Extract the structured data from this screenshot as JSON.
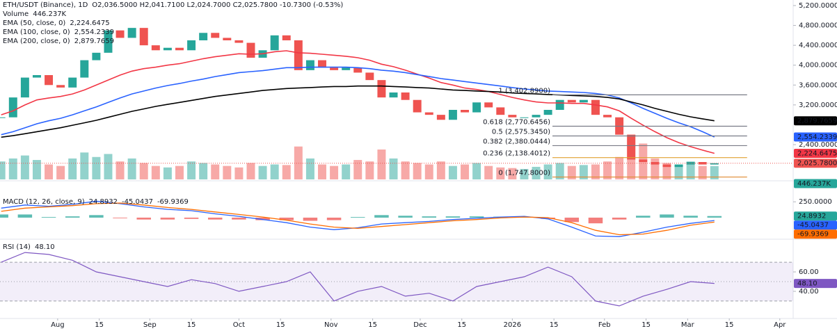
{
  "chart_data": [
    {
      "type": "candlestick",
      "symbol": "ETH/USDT (Binance), 1D",
      "ohlc_text": "O2,036.5000 H2,041.7100 L2,024.7000 C2,025.7800 -10.7300 (-0.53%)",
      "x": [
        -19,
        -15,
        -11,
        -7,
        -3,
        1,
        5,
        9,
        13,
        17,
        21,
        25,
        29,
        33,
        37,
        41,
        45,
        49,
        53,
        57,
        61,
        65,
        69,
        73,
        77,
        81,
        85,
        89,
        93,
        97,
        101,
        105,
        109,
        113,
        117,
        121,
        125,
        129,
        133,
        137,
        141,
        145,
        149,
        153,
        157,
        161,
        165,
        169,
        173,
        177,
        181,
        185,
        189,
        193,
        197,
        201,
        205,
        209,
        213,
        217,
        221
      ],
      "close": [
        2950,
        3350,
        3750,
        3800,
        3600,
        3550,
        3750,
        4100,
        4250,
        4700,
        4550,
        4750,
        4400,
        4300,
        4350,
        4300,
        4500,
        4650,
        4550,
        4500,
        4450,
        4150,
        4300,
        4600,
        4500,
        3900,
        4100,
        3950,
        3900,
        3950,
        3850,
        3700,
        3350,
        3450,
        3300,
        3050,
        3000,
        2900,
        3100,
        3050,
        3250,
        3150,
        3000,
        2950,
        2950,
        3000,
        3100,
        3300,
        3250,
        3300,
        3000,
        2950,
        2600,
        2100,
        2050,
        2000,
        1950,
        2000,
        2050,
        2000,
        2025.78
      ],
      "close_last_label": "2,025.7800",
      "up_color": "#26a69a",
      "down_color": "#ef5350",
      "volume": {
        "name": "Volume",
        "values": [
          600,
          700,
          800,
          650,
          500,
          450,
          700,
          900,
          750,
          850,
          600,
          700,
          550,
          450,
          400,
          450,
          600,
          550,
          500,
          450,
          400,
          550,
          450,
          500,
          480,
          1100,
          700,
          500,
          450,
          500,
          650,
          600,
          1000,
          700,
          600,
          550,
          500,
          600,
          450,
          500,
          550,
          450,
          400,
          380,
          350,
          420,
          500,
          550,
          450,
          480,
          500,
          600,
          750,
          1500,
          1200,
          700,
          550,
          500,
          600,
          450,
          446.237
        ],
        "last_label": "446.237K",
        "ylim": [
          0,
          6000
        ]
      },
      "series": [
        {
          "name": "EMA (50, close, 0)",
          "color": "#f23645",
          "last_label": "2,224.6475",
          "values": [
            3000,
            3080,
            3200,
            3300,
            3340,
            3370,
            3420,
            3500,
            3600,
            3700,
            3800,
            3880,
            3930,
            3960,
            4000,
            4030,
            4080,
            4130,
            4170,
            4200,
            4230,
            4220,
            4230,
            4270,
            4290,
            4250,
            4240,
            4220,
            4200,
            4180,
            4150,
            4100,
            4020,
            3970,
            3900,
            3820,
            3740,
            3650,
            3600,
            3540,
            3510,
            3470,
            3410,
            3350,
            3300,
            3260,
            3240,
            3240,
            3230,
            3230,
            3200,
            3160,
            3080,
            2930,
            2790,
            2660,
            2540,
            2440,
            2360,
            2290,
            2224.6475
          ]
        },
        {
          "name": "EMA (100, close, 0)",
          "color": "#2962ff",
          "last_label": "2,554.2339",
          "values": [
            2600,
            2660,
            2740,
            2820,
            2880,
            2930,
            3000,
            3080,
            3160,
            3250,
            3340,
            3420,
            3480,
            3540,
            3590,
            3630,
            3680,
            3720,
            3770,
            3810,
            3850,
            3870,
            3890,
            3920,
            3950,
            3950,
            3960,
            3960,
            3960,
            3960,
            3950,
            3930,
            3900,
            3880,
            3850,
            3810,
            3770,
            3730,
            3700,
            3670,
            3640,
            3610,
            3580,
            3550,
            3520,
            3500,
            3480,
            3470,
            3460,
            3450,
            3430,
            3400,
            3340,
            3240,
            3130,
            3030,
            2930,
            2840,
            2760,
            2660,
            2554.2339
          ]
        },
        {
          "name": "EMA (200, close, 0)",
          "color": "#000000",
          "last_label": "2,879.7659",
          "values": [
            2550,
            2580,
            2620,
            2660,
            2700,
            2740,
            2790,
            2840,
            2890,
            2950,
            3010,
            3070,
            3120,
            3170,
            3210,
            3250,
            3290,
            3330,
            3370,
            3400,
            3430,
            3460,
            3490,
            3510,
            3530,
            3540,
            3550,
            3560,
            3570,
            3570,
            3580,
            3580,
            3580,
            3570,
            3560,
            3550,
            3540,
            3520,
            3500,
            3490,
            3480,
            3470,
            3460,
            3440,
            3430,
            3420,
            3410,
            3400,
            3390,
            3380,
            3370,
            3350,
            3320,
            3260,
            3200,
            3130,
            3070,
            3010,
            2960,
            2920,
            2879.7659
          ]
        }
      ],
      "fib_x": [
        166.5,
        232
      ],
      "fib": [
        {
          "value": 3402.89,
          "label": "1 (3,402.8900)",
          "color": "#787b86"
        },
        {
          "value": 2770.6456,
          "label": "0.618 (2,770.6456)",
          "color": "#787b86"
        },
        {
          "value": 2575.345,
          "label": "0.5 (2,575.3450)",
          "color": "#787b86"
        },
        {
          "value": 2380.0444,
          "label": "0.382 (2,380.0444)",
          "color": "#787b86"
        },
        {
          "value": 2138.4012,
          "label": "0.236 (2,138.4012)",
          "color": "#e0a030"
        },
        {
          "value": 1747.8,
          "label": "0 (1,747.8000)",
          "color": "#e08a30"
        }
      ],
      "ylim": [
        1700,
        5312
      ],
      "yticks": [
        {
          "value": 5200,
          "label": "5,200.0000"
        },
        {
          "value": 4800,
          "label": "4,800.0000"
        },
        {
          "value": 4400,
          "label": "4,400.0000"
        },
        {
          "value": 4000,
          "label": "4,000.0000"
        },
        {
          "value": 3600,
          "label": "3,600.0000"
        },
        {
          "value": 3200,
          "label": "3,200.0000"
        },
        {
          "value": 2400,
          "label": "2,400.0000"
        }
      ],
      "xlim": [
        -19.4,
        247.5
      ],
      "xticks": [
        {
          "value": 0,
          "label": "Aug"
        },
        {
          "value": 14,
          "label": "15"
        },
        {
          "value": 31,
          "label": "Sep"
        },
        {
          "value": 45,
          "label": "15"
        },
        {
          "value": 61,
          "label": "Oct"
        },
        {
          "value": 75,
          "label": "15"
        },
        {
          "value": 92,
          "label": "Nov"
        },
        {
          "value": 106,
          "label": "15"
        },
        {
          "value": 122,
          "label": "Dec"
        },
        {
          "value": 136,
          "label": "15"
        },
        {
          "value": 153,
          "label": "2026"
        },
        {
          "value": 167,
          "label": "15"
        },
        {
          "value": 184,
          "label": "Feb"
        },
        {
          "value": 198,
          "label": "15"
        },
        {
          "value": 212,
          "label": "Mar"
        },
        {
          "value": 226,
          "label": "15"
        },
        {
          "value": 243,
          "label": "Apr"
        }
      ]
    },
    {
      "type": "macd",
      "title": "MACD (12, 26, close, 9)",
      "x": [
        -19,
        -11,
        -3,
        5,
        13,
        21,
        29,
        37,
        45,
        53,
        61,
        69,
        77,
        85,
        93,
        101,
        109,
        117,
        125,
        133,
        141,
        149,
        157,
        165,
        173,
        181,
        189,
        197,
        205,
        213,
        221
      ],
      "histogram": {
        "colors": [
          "#26a69a",
          "#ef5350"
        ],
        "values": [
          50,
          50,
          10,
          20,
          40,
          -10,
          -30,
          -30,
          -20,
          -30,
          -30,
          -40,
          -40,
          -50,
          -40,
          10,
          40,
          30,
          20,
          20,
          20,
          15,
          10,
          -20,
          -70,
          -90,
          -30,
          30,
          50,
          30,
          24.8932
        ]
      },
      "macd": {
        "color": "#2962ff",
        "values": [
          150,
          200,
          180,
          210,
          260,
          220,
          170,
          130,
          110,
          60,
          20,
          -30,
          -80,
          -150,
          -190,
          -160,
          -100,
          -80,
          -60,
          -30,
          -10,
          10,
          20,
          -20,
          -150,
          -290,
          -300,
          -230,
          -150,
          -90,
          -45.0437
        ]
      },
      "signal": {
        "color": "#ff6d00",
        "values": [
          100,
          150,
          170,
          190,
          220,
          230,
          200,
          160,
          130,
          90,
          50,
          10,
          -40,
          -100,
          -150,
          -170,
          -140,
          -110,
          -80,
          -50,
          -30,
          -5,
          10,
          0,
          -80,
          -200,
          -270,
          -260,
          -200,
          -120,
          -69.9369
        ]
      },
      "ylim": [
        -330,
        560
      ],
      "yticks": [
        {
          "value": 250,
          "label": "250.0000"
        }
      ]
    },
    {
      "type": "rsi",
      "title": "RSI (14)",
      "x": [
        -19,
        -11,
        -3,
        5,
        13,
        21,
        29,
        37,
        45,
        53,
        61,
        69,
        77,
        85,
        93,
        101,
        109,
        117,
        125,
        133,
        141,
        149,
        157,
        165,
        173,
        181,
        189,
        197,
        205,
        213,
        221
      ],
      "values": [
        70,
        80,
        78,
        72,
        60,
        55,
        50,
        45,
        52,
        48,
        40,
        45,
        50,
        60,
        30,
        40,
        45,
        35,
        38,
        30,
        45,
        50,
        55,
        65,
        55,
        30,
        25,
        35,
        42,
        50,
        48.1
      ],
      "last_label": "48.10",
      "color": "#7e57c2",
      "levels": [
        30,
        50,
        70
      ],
      "ylim": [
        12,
        93
      ],
      "yticks": [
        {
          "value": 60,
          "label": "60.00"
        },
        {
          "value": 40,
          "label": "40.00"
        }
      ]
    }
  ]
}
